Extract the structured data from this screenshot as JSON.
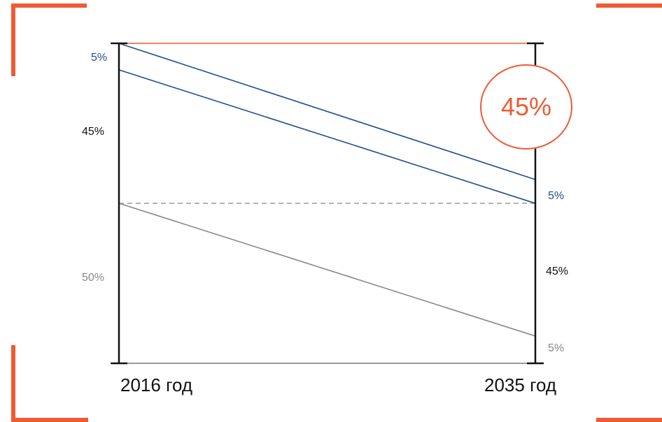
{
  "colors": {
    "accent": "#ee5b35",
    "blue": "#1e4f8a",
    "grey": "#888888",
    "dark": "#111111"
  },
  "left_axis": {
    "year_label": "2016 год",
    "segments": [
      {
        "label": "5%",
        "color": "blue"
      },
      {
        "label": "45%",
        "color": "dark"
      },
      {
        "label": "50%",
        "color": "grey"
      }
    ]
  },
  "right_axis": {
    "year_label": "2035 год",
    "segments": [
      {
        "label": "5%",
        "color": "blue"
      },
      {
        "label": "45%",
        "color": "dark"
      },
      {
        "label": "5%",
        "color": "grey"
      }
    ]
  },
  "highlight": {
    "label": "45%"
  }
}
